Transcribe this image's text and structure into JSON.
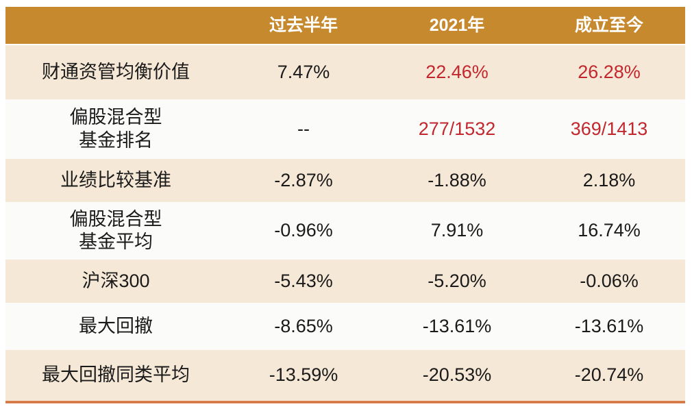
{
  "colors": {
    "header_bg": "#C7892E",
    "header_text": "#FFFFFF",
    "row_alt_bg": "#F6E8D6",
    "row_bg": "#FBFBFA",
    "red": "#C1272D",
    "black": "#1A1A1A",
    "bottom_line": "#C7602C"
  },
  "table": {
    "columns": [
      "过去半年",
      "2021年",
      "成立至今"
    ],
    "rows": [
      {
        "label": "财通资管均衡价值",
        "values": [
          "7.47%",
          "22.46%",
          "26.28%"
        ]
      },
      {
        "label": "偏股混合型\n基金排名",
        "values": [
          "--",
          "277/1532",
          "369/1413"
        ]
      },
      {
        "label": "业绩比较基准",
        "values": [
          "-2.87%",
          "-1.88%",
          "2.18%"
        ]
      },
      {
        "label": "偏股混合型\n基金平均",
        "values": [
          "-0.96%",
          "7.91%",
          "16.74%"
        ]
      },
      {
        "label": "沪深300",
        "values": [
          "-5.43%",
          "-5.20%",
          "-0.06%"
        ]
      },
      {
        "label": "最大回撤",
        "values": [
          "-8.65%",
          "-13.61%",
          "-13.61%"
        ]
      },
      {
        "label": "最大回撤同类平均",
        "values": [
          "-13.59%",
          "-20.53%",
          "-20.74%"
        ]
      }
    ]
  },
  "chart_data": {
    "type": "table",
    "title": "",
    "columns": [
      "",
      "过去半年",
      "2021年",
      "成立至今"
    ],
    "rows": [
      [
        "财通资管均衡价值",
        "7.47%",
        "22.46%",
        "26.28%"
      ],
      [
        "偏股混合型基金排名",
        "--",
        "277/1532",
        "369/1413"
      ],
      [
        "业绩比较基准",
        "-2.87%",
        "-1.88%",
        "2.18%"
      ],
      [
        "偏股混合型基金平均",
        "-0.96%",
        "7.91%",
        "16.74%"
      ],
      [
        "沪深300",
        "-5.43%",
        "-5.20%",
        "-0.06%"
      ],
      [
        "最大回撤",
        "-8.65%",
        "-13.61%",
        "-13.61%"
      ],
      [
        "最大回撤同类平均",
        "-13.59%",
        "-20.53%",
        "-20.74%"
      ]
    ],
    "highlighted_cells_color": "#C1272D",
    "highlighted_cells": [
      [
        0,
        2
      ],
      [
        0,
        3
      ],
      [
        1,
        2
      ],
      [
        1,
        3
      ]
    ]
  }
}
